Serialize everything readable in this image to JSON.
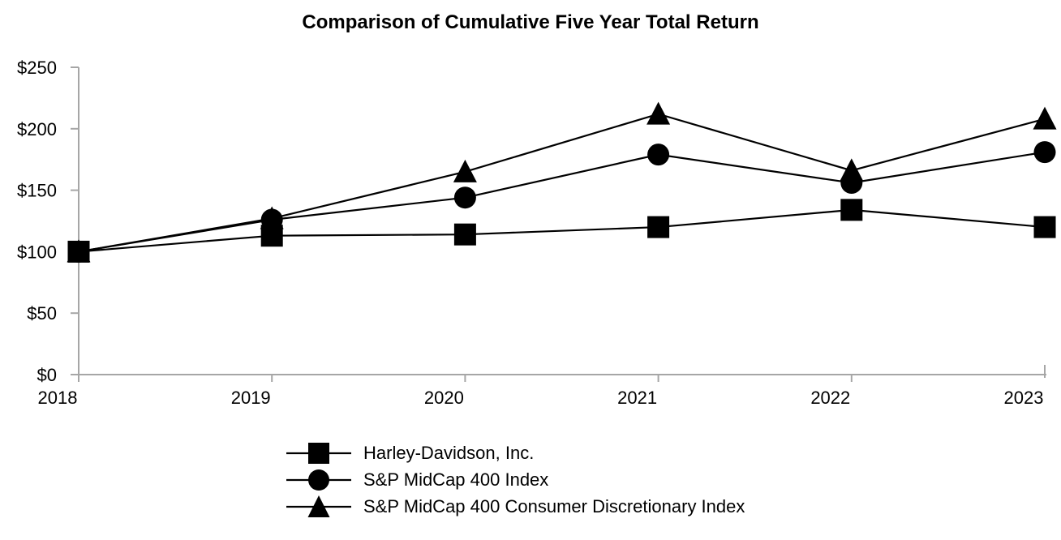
{
  "chart_data": {
    "type": "line",
    "title": "Comparison of Cumulative Five Year Total Return",
    "categories": [
      "2018",
      "2019",
      "2020",
      "2021",
      "2022",
      "2023"
    ],
    "series": [
      {
        "name": "Harley-Davidson, Inc.",
        "marker": "square",
        "values": [
          100,
          113,
          114,
          120,
          134,
          120
        ]
      },
      {
        "name": "S&P MidCap 400 Index",
        "marker": "circle",
        "values": [
          100,
          126,
          144,
          179,
          156,
          181
        ]
      },
      {
        "name": "S&P MidCap 400 Consumer Discretionary Index",
        "marker": "triangle",
        "values": [
          100,
          127,
          165,
          212,
          166,
          208
        ]
      }
    ],
    "y_ticks": [
      {
        "value": 0,
        "label": "$0"
      },
      {
        "value": 50,
        "label": "$50"
      },
      {
        "value": 100,
        "label": "$100"
      },
      {
        "value": 150,
        "label": "$150"
      },
      {
        "value": 200,
        "label": "$200"
      },
      {
        "value": 250,
        "label": "$250"
      }
    ],
    "ylim": [
      0,
      250
    ],
    "xlabel": "",
    "ylabel": "",
    "grid": false,
    "legend_position": "bottom-left",
    "colors": {
      "series": "#000000",
      "axis": "#a6a6a6",
      "text": "#000000",
      "background": "#ffffff"
    }
  }
}
